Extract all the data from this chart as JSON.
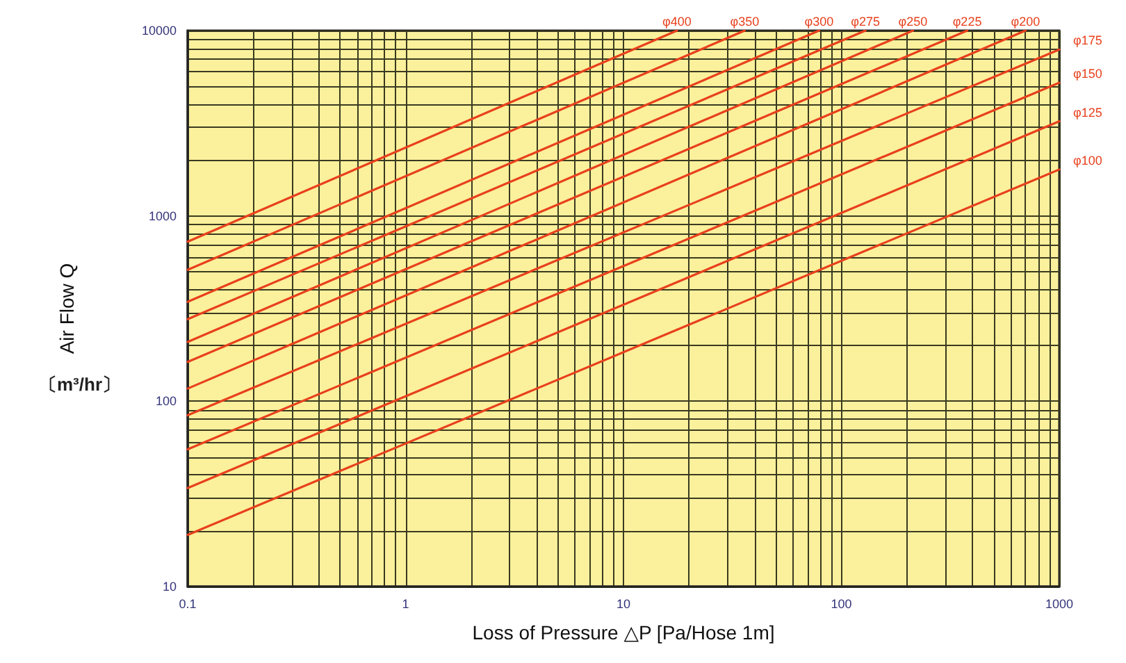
{
  "chart_data": {
    "type": "line",
    "xlabel": "Loss of Pressure △P [Pa/Hose 1m]",
    "ylabel": "Air Flow Q",
    "annotations": [
      "〔m³/hr〕"
    ],
    "log": "xy",
    "grid": true,
    "legend": false,
    "marker": "none",
    "line_style": "solid",
    "xlim": [
      0.1,
      1000
    ],
    "ylim": [
      10,
      10000
    ],
    "xticks": [
      0.1,
      {
        "value": 0.2,
        "label": null
      },
      {
        "value": 0.3,
        "label": null
      },
      {
        "value": 0.4,
        "label": null
      },
      {
        "value": 0.5,
        "label": null
      },
      {
        "value": 0.6,
        "label": null
      },
      {
        "value": 0.7,
        "label": null
      },
      {
        "value": 0.8,
        "label": null
      },
      {
        "value": 0.9,
        "label": null
      },
      1,
      {
        "value": 2,
        "label": null
      },
      {
        "value": 3,
        "label": null
      },
      {
        "value": 4,
        "label": null
      },
      {
        "value": 5,
        "label": null
      },
      {
        "value": 6,
        "label": null
      },
      {
        "value": 7,
        "label": null
      },
      {
        "value": 8,
        "label": null
      },
      {
        "value": 9,
        "label": null
      },
      10,
      {
        "value": 20,
        "label": null
      },
      {
        "value": 30,
        "label": null
      },
      {
        "value": 40,
        "label": null
      },
      {
        "value": 50,
        "label": null
      },
      {
        "value": 60,
        "label": null
      },
      {
        "value": 70,
        "label": null
      },
      {
        "value": 80,
        "label": null
      },
      {
        "value": 90,
        "label": null
      },
      100,
      {
        "value": 200,
        "label": null
      },
      {
        "value": 300,
        "label": null
      },
      {
        "value": 400,
        "label": null
      },
      {
        "value": 500,
        "label": null
      },
      {
        "value": 600,
        "label": null
      },
      {
        "value": 700,
        "label": null
      },
      {
        "value": 800,
        "label": null
      },
      {
        "value": 900,
        "label": null
      },
      1000
    ],
    "yticks": [
      10,
      {
        "value": 20,
        "label": null
      },
      {
        "value": 30,
        "label": null
      },
      {
        "value": 40,
        "label": null
      },
      {
        "value": 50,
        "label": null
      },
      {
        "value": 60,
        "label": null
      },
      {
        "value": 70,
        "label": null
      },
      {
        "value": 80,
        "label": null
      },
      {
        "value": 90,
        "label": null
      },
      100,
      {
        "value": 200,
        "label": null
      },
      {
        "value": 300,
        "label": null
      },
      {
        "value": 400,
        "label": null
      },
      {
        "value": 500,
        "label": null
      },
      {
        "value": 600,
        "label": null
      },
      {
        "value": 700,
        "label": null
      },
      {
        "value": 800,
        "label": null
      },
      {
        "value": 900,
        "label": null
      },
      1000,
      {
        "value": 2000,
        "label": null
      },
      {
        "value": 3000,
        "label": null
      },
      {
        "value": 4000,
        "label": null
      },
      {
        "value": 5000,
        "label": null
      },
      {
        "value": 6000,
        "label": null
      },
      {
        "value": 7000,
        "label": null
      },
      {
        "value": 8000,
        "label": null
      },
      {
        "value": 9000,
        "label": null
      },
      10000
    ],
    "series": [
      {
        "name": "φ400",
        "color": "#e8401c",
        "x": [
          0.1,
          17.6
        ],
        "values": [
          726,
          10000
        ]
      },
      {
        "name": "φ350",
        "color": "#e8401c",
        "x": [
          0.1,
          36
        ],
        "values": [
          512,
          10000
        ]
      },
      {
        "name": "φ300",
        "color": "#e8401c",
        "x": [
          0.1,
          79
        ],
        "values": [
          344,
          10000
        ]
      },
      {
        "name": "φ275",
        "color": "#e8401c",
        "x": [
          0.1,
          129
        ],
        "values": [
          277,
          10000
        ]
      },
      {
        "name": "φ250",
        "color": "#e8401c",
        "x": [
          0.1,
          213
        ],
        "values": [
          209,
          10000
        ]
      },
      {
        "name": "φ225",
        "color": "#e8401c",
        "x": [
          0.1,
          378
        ],
        "values": [
          163,
          10000
        ]
      },
      {
        "name": "φ200",
        "color": "#e8401c",
        "x": [
          0.1,
          700
        ],
        "values": [
          117,
          10000
        ]
      },
      {
        "name": "φ175",
        "color": "#e8401c",
        "x": [
          0.1,
          1000
        ],
        "values": [
          84,
          7900
        ]
      },
      {
        "name": "φ150",
        "color": "#e8401c",
        "x": [
          0.1,
          1000
        ],
        "values": [
          55,
          5230
        ]
      },
      {
        "name": "φ125",
        "color": "#e8401c",
        "x": [
          0.1,
          1000
        ],
        "values": [
          34,
          3240
        ]
      },
      {
        "name": "φ100",
        "color": "#e8401c",
        "x": [
          0.1,
          1000
        ],
        "values": [
          19,
          1780
        ]
      }
    ]
  }
}
